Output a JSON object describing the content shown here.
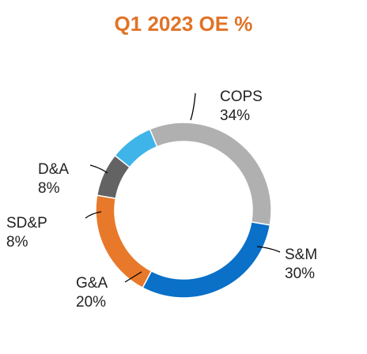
{
  "chart_data": {
    "type": "pie",
    "title": "Q1 2023 OE %",
    "title_color": "#E07328",
    "donut": true,
    "slices": [
      {
        "label": "COPS",
        "value": 34,
        "value_label": "34%",
        "color": "#B0B0B0"
      },
      {
        "label": "S&M",
        "value": 30,
        "value_label": "30%",
        "color": "#0A70C8"
      },
      {
        "label": "G&A",
        "value": 20,
        "value_label": "20%",
        "color": "#E8792A"
      },
      {
        "label": "SD&P",
        "value": 8,
        "value_label": "8%",
        "color": "#636363"
      },
      {
        "label": "D&A",
        "value": 8,
        "value_label": "8%",
        "color": "#3FB4E8"
      }
    ]
  }
}
